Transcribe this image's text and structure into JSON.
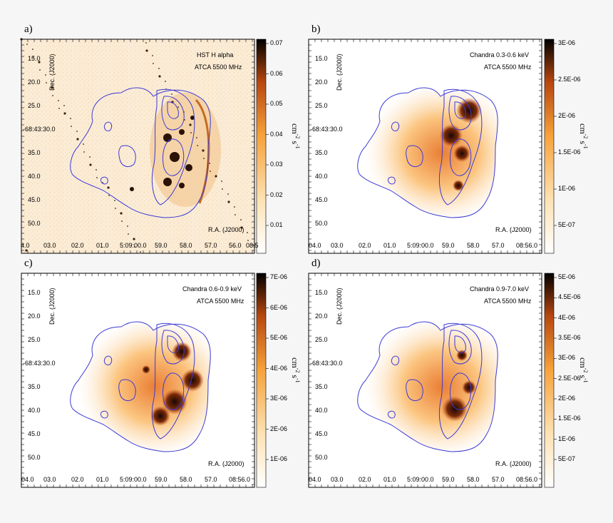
{
  "panels": [
    {
      "letter": "a)",
      "label1": "HST H alpha",
      "label2": "ATCA 5500 MHz",
      "ticks": [
        "0.07",
        "0.06",
        "0.05",
        "0.04",
        "0.03",
        "0.02",
        "0.01"
      ],
      "units": [
        "cm",
        "-2",
        "s",
        "-1"
      ],
      "ra_ticks": [
        "4.0",
        "03.0",
        "02.0",
        "01.0",
        "5:09:00.0",
        "59.0",
        "58.0",
        "57.0",
        "56.0",
        "08.5"
      ],
      "colors": {
        "lo": "#ffffff",
        "mid": "#f7a23a",
        "hi": "#000000"
      }
    },
    {
      "letter": "b)",
      "label1": "Chandra 0.3-0.6 keV",
      "label2": "ATCA 5500 MHz",
      "ticks": [
        "3E-06",
        "2.5E-06",
        "2E-06",
        "1.5E-06",
        "1E-06",
        "5E-07"
      ],
      "units": [
        "cm",
        "-2",
        "s",
        "-1"
      ],
      "ra_ticks": [
        "04.0",
        "03.0",
        "02.0",
        "01.0",
        "5:09:00.0",
        "59.0",
        "58.0",
        "57.0",
        "08:56.0"
      ]
    },
    {
      "letter": "c)",
      "label1": "Chandra 0.6-0.9 keV",
      "label2": "ATCA 5500 MHz",
      "ticks": [
        "7E-06",
        "6E-06",
        "5E-06",
        "4E-06",
        "3E-06",
        "2E-06",
        "1E-06"
      ],
      "units": [
        "cm",
        "-2",
        "s",
        "-1"
      ],
      "ra_ticks": [
        "04.0",
        "03.0",
        "02.0",
        "01.0",
        "5:09:00.0",
        "59.0",
        "58.0",
        "57.0",
        "08:56.0"
      ]
    },
    {
      "letter": "d)",
      "label1": "Chandra 0.9-7.0 keV",
      "label2": "ATCA 5500 MHz",
      "ticks": [
        "5E-06",
        "4.5E-06",
        "4E-06",
        "3.5E-06",
        "3E-06",
        "2.5E-06",
        "2E-06",
        "1.5E-06",
        "1E-06",
        "5E-07"
      ],
      "units": [
        "cm",
        "-2",
        "s",
        "-1"
      ],
      "ra_ticks": [
        "04.0",
        "03.0",
        "02.0",
        "01.0",
        "5:09:00.0",
        "59.0",
        "58.0",
        "57.0",
        "08:56.0"
      ]
    }
  ],
  "dec_ticks": [
    "15.0",
    "20.0",
    "25.0",
    "-68:43:30.0",
    "35.0",
    "40.0",
    "45.0",
    "50.0"
  ],
  "dec_label": "Dec. (J2000)",
  "ra_label": "R.A. (J2000)",
  "contour_color": "#3b3bd6"
}
